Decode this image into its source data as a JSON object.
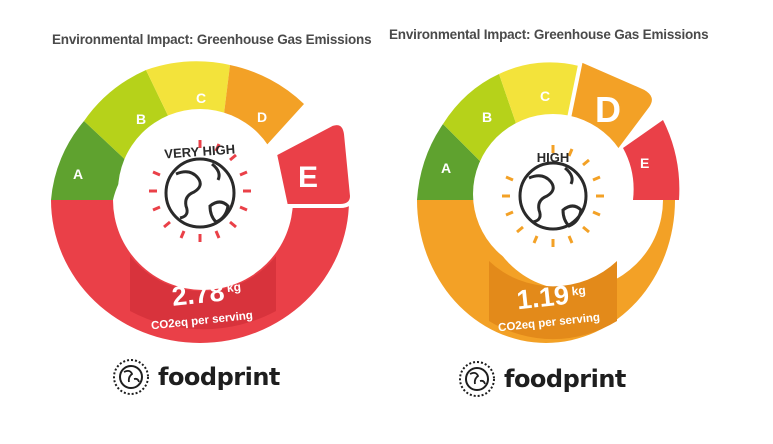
{
  "cards": [
    {
      "title": "Environmental Impact: Greenhouse Gas Emissions",
      "segments": [
        {
          "letter": "A",
          "color": "#5fa22f"
        },
        {
          "letter": "B",
          "color": "#b6d21a"
        },
        {
          "letter": "C",
          "color": "#f3e33b"
        },
        {
          "letter": "D",
          "color": "#f3a126"
        },
        {
          "letter": "E",
          "color": "#ea4048"
        }
      ],
      "active_letter": "E",
      "level_label": "VERY HIGH",
      "value": "2.78",
      "unit": "kg",
      "caption": "CO2eq per serving",
      "icon": "globe-icon",
      "brand": "foodprint"
    },
    {
      "title": "Environmental Impact: Greenhouse Gas Emissions",
      "segments": [
        {
          "letter": "A",
          "color": "#5fa22f"
        },
        {
          "letter": "B",
          "color": "#b6d21a"
        },
        {
          "letter": "C",
          "color": "#f3e33b"
        },
        {
          "letter": "D",
          "color": "#f3a126"
        },
        {
          "letter": "E",
          "color": "#ea4048"
        }
      ],
      "active_letter": "D",
      "level_label": "HIGH",
      "value": "1.19",
      "unit": "kg",
      "caption": "CO2eq per serving",
      "icon": "globe-icon",
      "brand": "foodprint"
    }
  ]
}
